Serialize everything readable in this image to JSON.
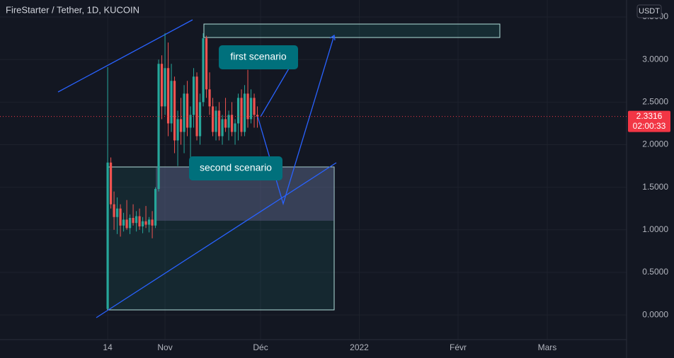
{
  "chart_data": {
    "type": "candlestick",
    "title": "FireStarter / Tether, 1D, KUCOIN",
    "currency": "USDT",
    "last_price": 2.3316,
    "countdown": "02:00:33",
    "annotations": [
      "first scenario",
      "second scenario"
    ],
    "up_color": "#26a69a",
    "down_color": "#ef5350",
    "x": [
      0,
      1,
      2,
      3,
      4,
      5,
      6,
      7,
      8,
      9,
      10,
      11,
      12,
      13,
      14,
      15,
      16,
      17,
      18,
      19,
      20,
      21,
      22,
      23,
      24,
      25,
      26,
      27,
      28,
      29,
      30,
      31,
      32,
      33,
      34,
      35,
      36,
      37,
      38,
      39,
      40,
      41,
      42,
      43,
      44,
      45,
      46,
      47
    ],
    "open": [
      0.07,
      1.79,
      1.3,
      1.15,
      1.25,
      1.05,
      1.12,
      1.02,
      1.14,
      1.08,
      1.16,
      1.04,
      1.1,
      1.06,
      1.12,
      1.05,
      1.48,
      2.95,
      2.45,
      2.9,
      2.25,
      2.75,
      2.05,
      2.3,
      2.15,
      2.6,
      2.2,
      2.35,
      2.8,
      2.1,
      2.5,
      3.25,
      2.65,
      2.45,
      2.15,
      2.4,
      2.1,
      2.3,
      2.2,
      2.35,
      2.15,
      2.25,
      2.55,
      2.15,
      2.6,
      2.3,
      2.55,
      2.35
    ],
    "high": [
      2.91,
      1.85,
      1.45,
      1.38,
      1.3,
      1.2,
      1.35,
      1.18,
      1.3,
      1.22,
      1.25,
      1.15,
      1.28,
      1.15,
      1.22,
      1.5,
      3.0,
      3.05,
      3.31,
      3.2,
      2.95,
      2.8,
      2.4,
      2.55,
      2.7,
      2.75,
      2.45,
      2.9,
      2.85,
      2.6,
      3.31,
      3.28,
      2.85,
      2.55,
      2.45,
      2.5,
      2.35,
      2.55,
      2.4,
      2.5,
      2.3,
      2.6,
      2.65,
      2.7,
      2.88,
      2.65,
      2.6,
      2.45
    ],
    "low": [
      0.07,
      1.25,
      1.0,
      0.95,
      0.92,
      0.98,
      1.0,
      0.95,
      1.05,
      0.98,
      1.0,
      0.96,
      1.02,
      0.97,
      0.9,
      1.02,
      1.45,
      2.3,
      2.35,
      2.1,
      2.15,
      1.9,
      1.75,
      2.0,
      1.9,
      2.1,
      1.85,
      2.2,
      2.05,
      2.0,
      2.45,
      2.55,
      2.35,
      2.1,
      2.05,
      2.05,
      2.0,
      2.15,
      2.05,
      2.1,
      2.0,
      2.05,
      2.1,
      2.1,
      2.2,
      2.25,
      2.2,
      2.2
    ],
    "close": [
      1.79,
      1.3,
      1.15,
      1.25,
      1.05,
      1.12,
      1.02,
      1.14,
      1.08,
      1.16,
      1.04,
      1.1,
      1.06,
      1.12,
      1.05,
      1.48,
      2.95,
      2.45,
      2.9,
      2.25,
      2.75,
      2.05,
      2.3,
      2.15,
      2.6,
      2.2,
      2.35,
      2.8,
      2.1,
      2.5,
      3.25,
      2.65,
      2.45,
      2.15,
      2.4,
      2.1,
      2.3,
      2.2,
      2.35,
      2.15,
      2.25,
      2.55,
      2.15,
      2.6,
      2.3,
      2.55,
      2.35,
      2.3316
    ],
    "xlim": [
      -33.8,
      162.9
    ],
    "xticks": [
      {
        "value": 0,
        "label": "14"
      },
      {
        "value": 18,
        "label": "Nov"
      },
      {
        "value": 48,
        "label": "Déc"
      },
      {
        "value": 79,
        "label": "2022"
      },
      {
        "value": 110,
        "label": "Févr"
      },
      {
        "value": 138,
        "label": "Mars"
      }
    ],
    "ylim": [
      -0.29,
      3.7
    ],
    "yticks": [
      {
        "value": 0,
        "label": "0.0000"
      },
      {
        "value": 0.5,
        "label": "0.5000"
      },
      {
        "value": 1,
        "label": "1.0000"
      },
      {
        "value": 1.5,
        "label": "1.5000"
      },
      {
        "value": 2,
        "label": "2.0000"
      },
      {
        "value": 2.5,
        "label": "2.5000"
      },
      {
        "value": 3,
        "label": "3.0000"
      },
      {
        "value": 3.5,
        "label": "3.5000"
      }
    ],
    "grid": true
  }
}
